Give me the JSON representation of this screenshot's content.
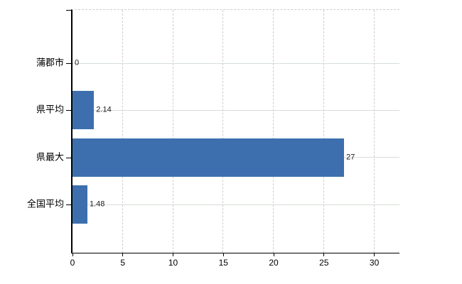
{
  "chart_data": {
    "type": "bar",
    "orientation": "horizontal",
    "title": "",
    "xlabel": "",
    "ylabel": "",
    "categories": [
      "蒲郡市",
      "県平均",
      "県最大",
      "全国平均"
    ],
    "values": [
      0,
      2.14,
      27,
      1.48
    ],
    "value_labels": [
      "0",
      "2.14",
      "27",
      "1.48"
    ],
    "xlim": [
      0,
      32.5
    ],
    "xticks": [
      0,
      5,
      10,
      15,
      20,
      25,
      30
    ],
    "xtick_labels": [
      "0",
      "5",
      "10",
      "15",
      "20",
      "25",
      "30"
    ],
    "grid": true,
    "legend": false,
    "colors": {
      "bar": "#3d6fae",
      "grid_vertical": "#d2cbd2",
      "grid_horizontal": "#d6ded6",
      "axis": "#000000",
      "text": "#1a1a1a",
      "background": "#ffffff"
    }
  }
}
